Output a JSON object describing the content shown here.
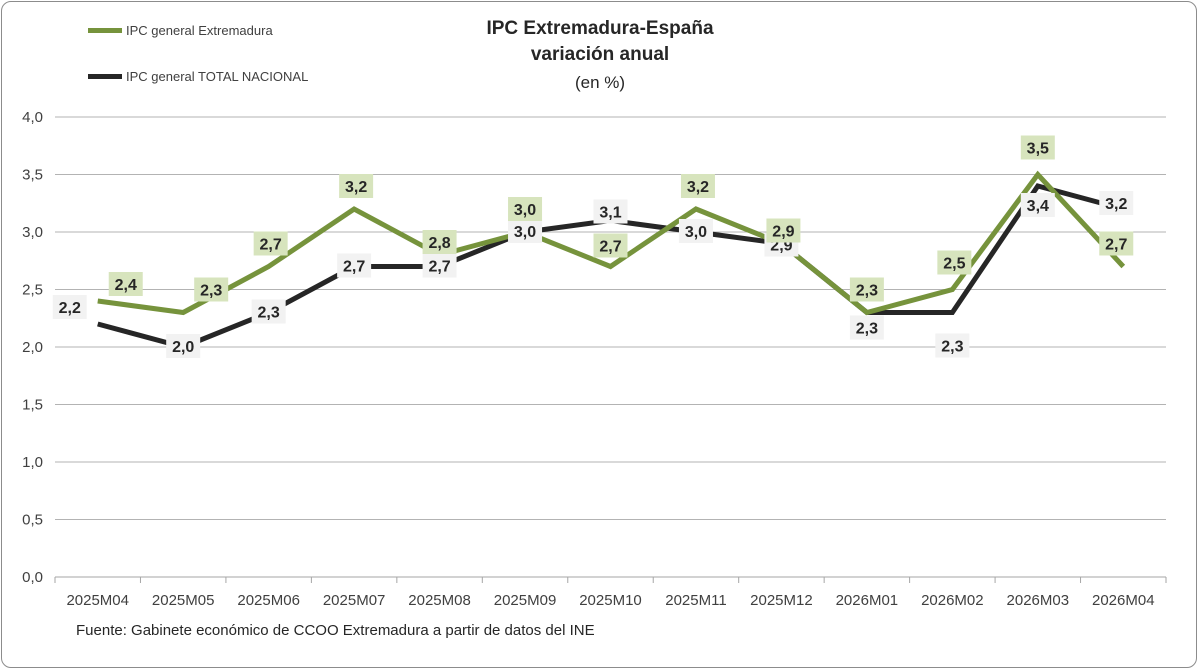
{
  "chart_data": {
    "type": "line",
    "title": "IPC Extremadura-España",
    "subtitle": "variación anual",
    "unit": "(en %)",
    "categories": [
      "2025M04",
      "2025M05",
      "2025M06",
      "2025M07",
      "2025M08",
      "2025M09",
      "2025M10",
      "2025M11",
      "2025M12",
      "2026M01",
      "2026M02",
      "2026M03",
      "2026M04"
    ],
    "series": [
      {
        "name": "IPC general Extremadura",
        "color": "#76933c",
        "label_bg": "#d7e4bd",
        "values": [
          2.4,
          2.3,
          2.7,
          3.2,
          2.8,
          3.0,
          2.7,
          3.2,
          2.9,
          2.3,
          2.5,
          3.5,
          2.7
        ]
      },
      {
        "name": "IPC general TOTAL NACIONAL",
        "color": "#262626",
        "label_bg": "#f2f2f2",
        "values": [
          2.2,
          2.0,
          2.3,
          2.7,
          2.7,
          3.0,
          3.1,
          3.0,
          2.9,
          2.3,
          2.3,
          3.4,
          3.2
        ]
      }
    ],
    "data_labels": {
      "extremadura": [
        "2,4",
        "2,3",
        "2,7",
        "3,2",
        "2,8",
        "3,0",
        "2,7",
        "3,2",
        "2,9",
        "2,3",
        "2,5",
        "3,5",
        "2,7"
      ],
      "nacional": [
        "2,2",
        "2,0",
        "2,3",
        "2,7",
        "2,7",
        "3,0",
        "3,1",
        "3,0",
        "2,9",
        "2,3",
        "2,3",
        "3,4",
        "3,2"
      ]
    },
    "y_ticks": [
      "0,0",
      "0,5",
      "1,0",
      "1,5",
      "2,0",
      "2,5",
      "3,0",
      "3,5",
      "4,0"
    ],
    "ylim": [
      0,
      4
    ],
    "grid": true,
    "legend_position": "top-left"
  },
  "source_text": "Fuente: Gabinete económico de CCOO Extremadura a partir de datos del INE"
}
